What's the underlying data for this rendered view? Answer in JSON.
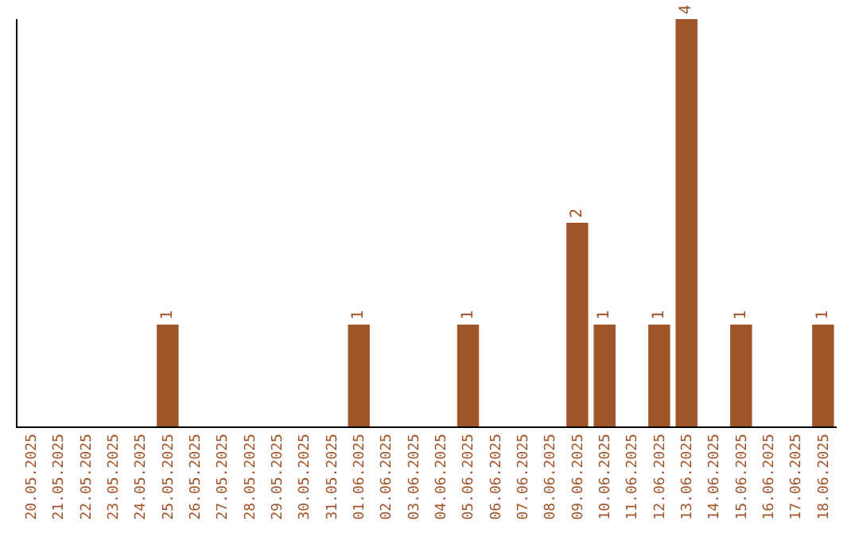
{
  "chart_data": {
    "type": "bar",
    "categories": [
      "20.05.2025",
      "21.05.2025",
      "22.05.2025",
      "23.05.2025",
      "24.05.2025",
      "25.05.2025",
      "26.05.2025",
      "27.05.2025",
      "28.05.2025",
      "29.05.2025",
      "30.05.2025",
      "31.05.2025",
      "01.06.2025",
      "02.06.2025",
      "03.06.2025",
      "04.06.2025",
      "05.06.2025",
      "06.06.2025",
      "07.06.2025",
      "08.06.2025",
      "09.06.2025",
      "10.06.2025",
      "11.06.2025",
      "12.06.2025",
      "13.06.2025",
      "14.06.2025",
      "15.06.2025",
      "16.06.2025",
      "17.06.2025",
      "18.06.2025"
    ],
    "values": [
      0,
      0,
      0,
      0,
      0,
      1,
      0,
      0,
      0,
      0,
      0,
      0,
      1,
      0,
      0,
      0,
      1,
      0,
      0,
      0,
      2,
      1,
      0,
      1,
      4,
      0,
      1,
      0,
      0,
      1
    ],
    "value_labels": [
      null,
      null,
      null,
      null,
      null,
      "1",
      null,
      null,
      null,
      null,
      null,
      null,
      "1",
      null,
      null,
      null,
      "1",
      null,
      null,
      null,
      "2",
      "1",
      null,
      "1",
      "4",
      null,
      "1",
      null,
      null,
      "1"
    ],
    "color": "#a0552a",
    "ylim": [
      0,
      4
    ],
    "tick_labels": "x",
    "legend": false
  }
}
